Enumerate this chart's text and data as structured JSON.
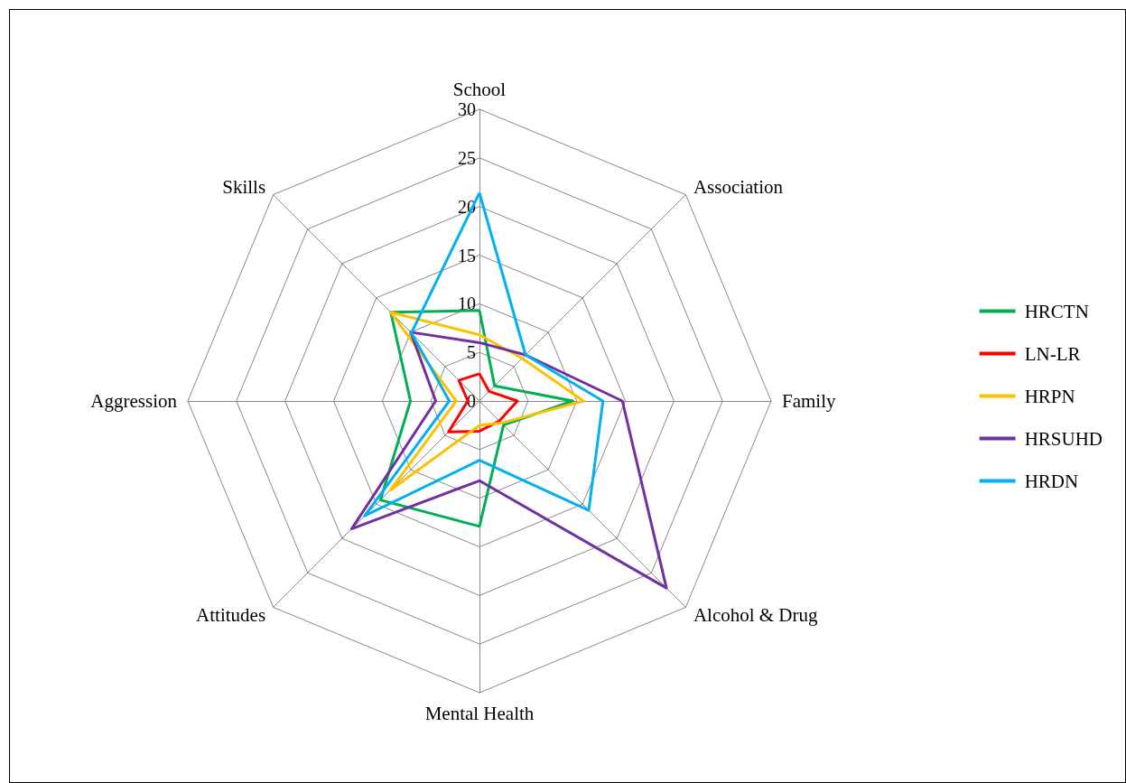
{
  "chart_data": {
    "type": "radar",
    "categories": [
      "School",
      "Association",
      "Family",
      "Alcohol & Drug",
      "Mental Health",
      "Attitudes",
      "Aggression",
      "Skills"
    ],
    "series": [
      {
        "name": "HRCTN",
        "color": "#00b050",
        "values": [
          9.3,
          2.2,
          9.6,
          3.5,
          12.9,
          14.4,
          7.1,
          12.9
        ]
      },
      {
        "name": "LN-LR",
        "color": "#ff0000",
        "values": [
          2.8,
          1.4,
          3.9,
          2.9,
          3.1,
          4.5,
          1.2,
          3.0
        ]
      },
      {
        "name": "HRPN",
        "color": "#ffc000",
        "values": [
          6.8,
          6.2,
          10.7,
          3.2,
          2.5,
          13.0,
          2.4,
          12.9
        ]
      },
      {
        "name": "HRSUHD",
        "color": "#7030a0",
        "values": [
          6.0,
          6.7,
          14.7,
          27.2,
          8.2,
          18.6,
          4.5,
          10.0
        ]
      },
      {
        "name": "HRDN",
        "color": "#00b0f0",
        "values": [
          21.4,
          6.7,
          12.7,
          15.9,
          6.1,
          16.7,
          3.1,
          9.9
        ]
      }
    ],
    "ylim": [
      0,
      30
    ],
    "yticks": [
      0,
      5,
      10,
      15,
      20,
      25,
      30
    ],
    "legend": "right",
    "marker": "none",
    "line_style": "solid"
  }
}
